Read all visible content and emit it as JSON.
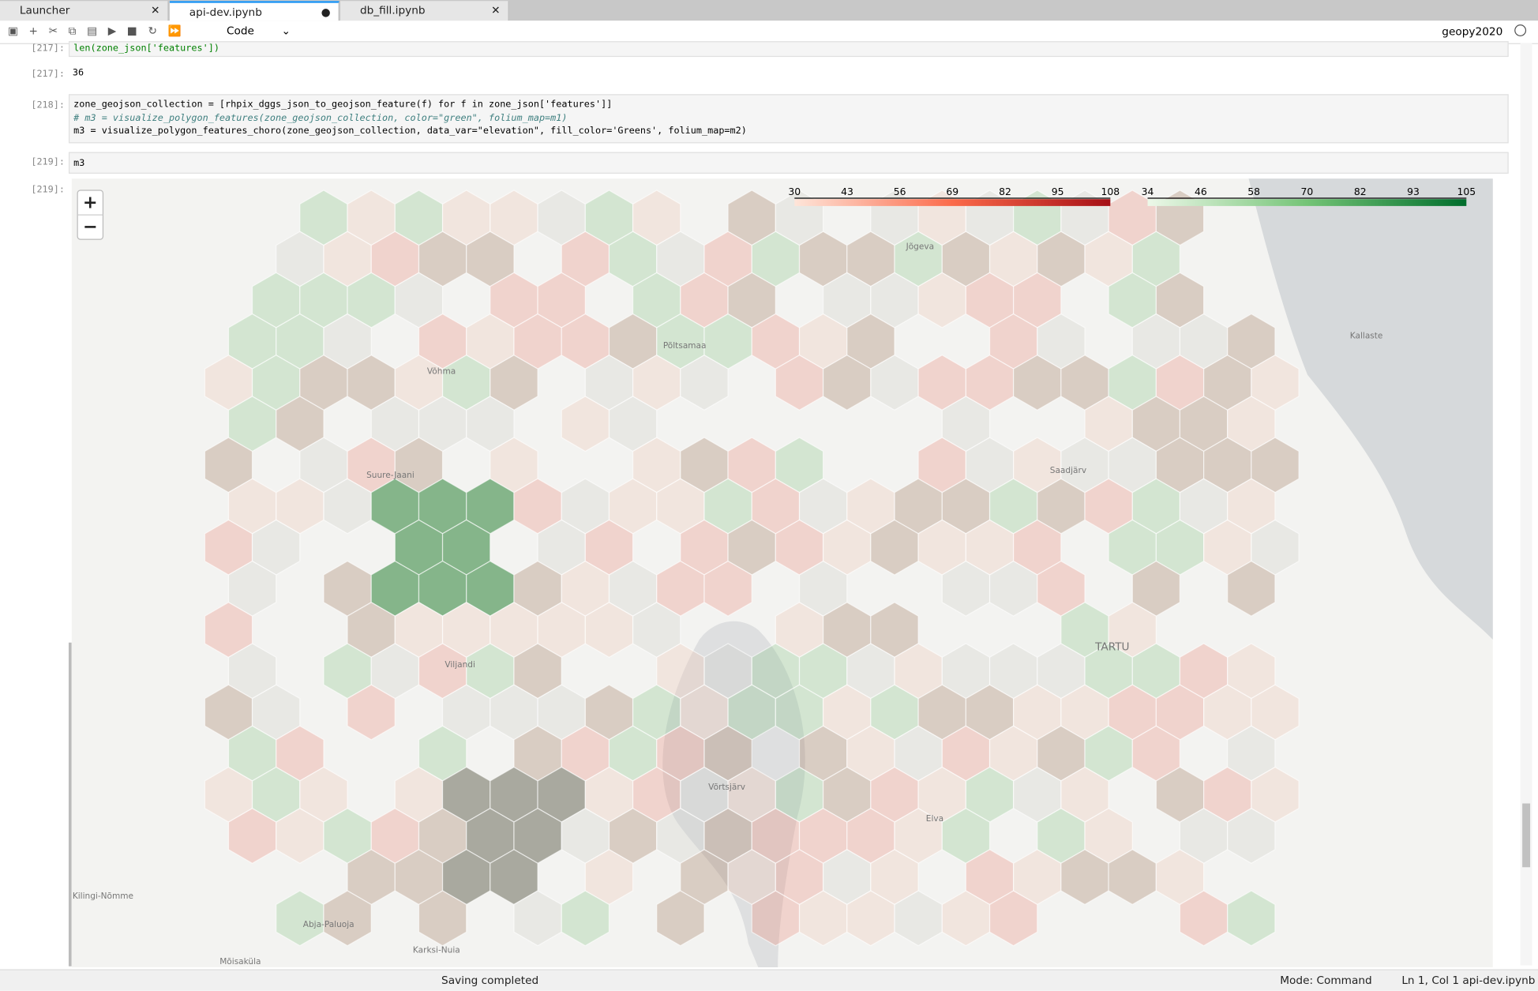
{
  "tabs": [
    "Launcher",
    "api-dev.ipynb",
    "db_fill.ipynb"
  ],
  "toolbar": {
    "cell_type": "Code",
    "kernel": "geopy2020"
  },
  "cells": [
    {
      "prompt": "[217]:",
      "input": [
        "len(zone_json['features'])"
      ],
      "output_prompt": "[217]:",
      "output": "36"
    },
    {
      "prompt": "[218]:",
      "input": [
        "zone_geojson_collection = [rhpix_dggs_json_to_geojson_feature(f) for f in zone_json['features']]",
        "# m3 = visualize_polygon_features(zone_geojson_collection, color=\"green\", folium_map=m1)",
        "m3 = visualize_polygon_features_choro(zone_geojson_collection, data_var=\"elevation\", fill_color='Greens', folium_map=m2)"
      ]
    },
    {
      "prompt": "[219]:",
      "input": [
        "m3"
      ],
      "output_prompt": "[219]:"
    }
  ],
  "map": {
    "zoom_in": "+",
    "zoom_out": "−",
    "legend_red": [
      30,
      43,
      56,
      69,
      82,
      95,
      108
    ],
    "legend_green": [
      34,
      46,
      58,
      70,
      82,
      93,
      105
    ],
    "places": [
      "Jõgeva",
      "Põltsamaa",
      "Võhma",
      "Kallaste",
      "Suure-Jaani",
      "Viljandi",
      "Saadjärv",
      "TARTU",
      "Elva",
      "Võrtsjärv",
      "Kilingi-Nõmme",
      "Abja-Paluoja",
      "Karksi-Nuia",
      "Mõisaküla"
    ]
  },
  "status": {
    "left": "Saving completed",
    "mode": "Mode: Command",
    "cursor": "Ln 1, Col 1",
    "file": "api-dev.ipynb"
  }
}
